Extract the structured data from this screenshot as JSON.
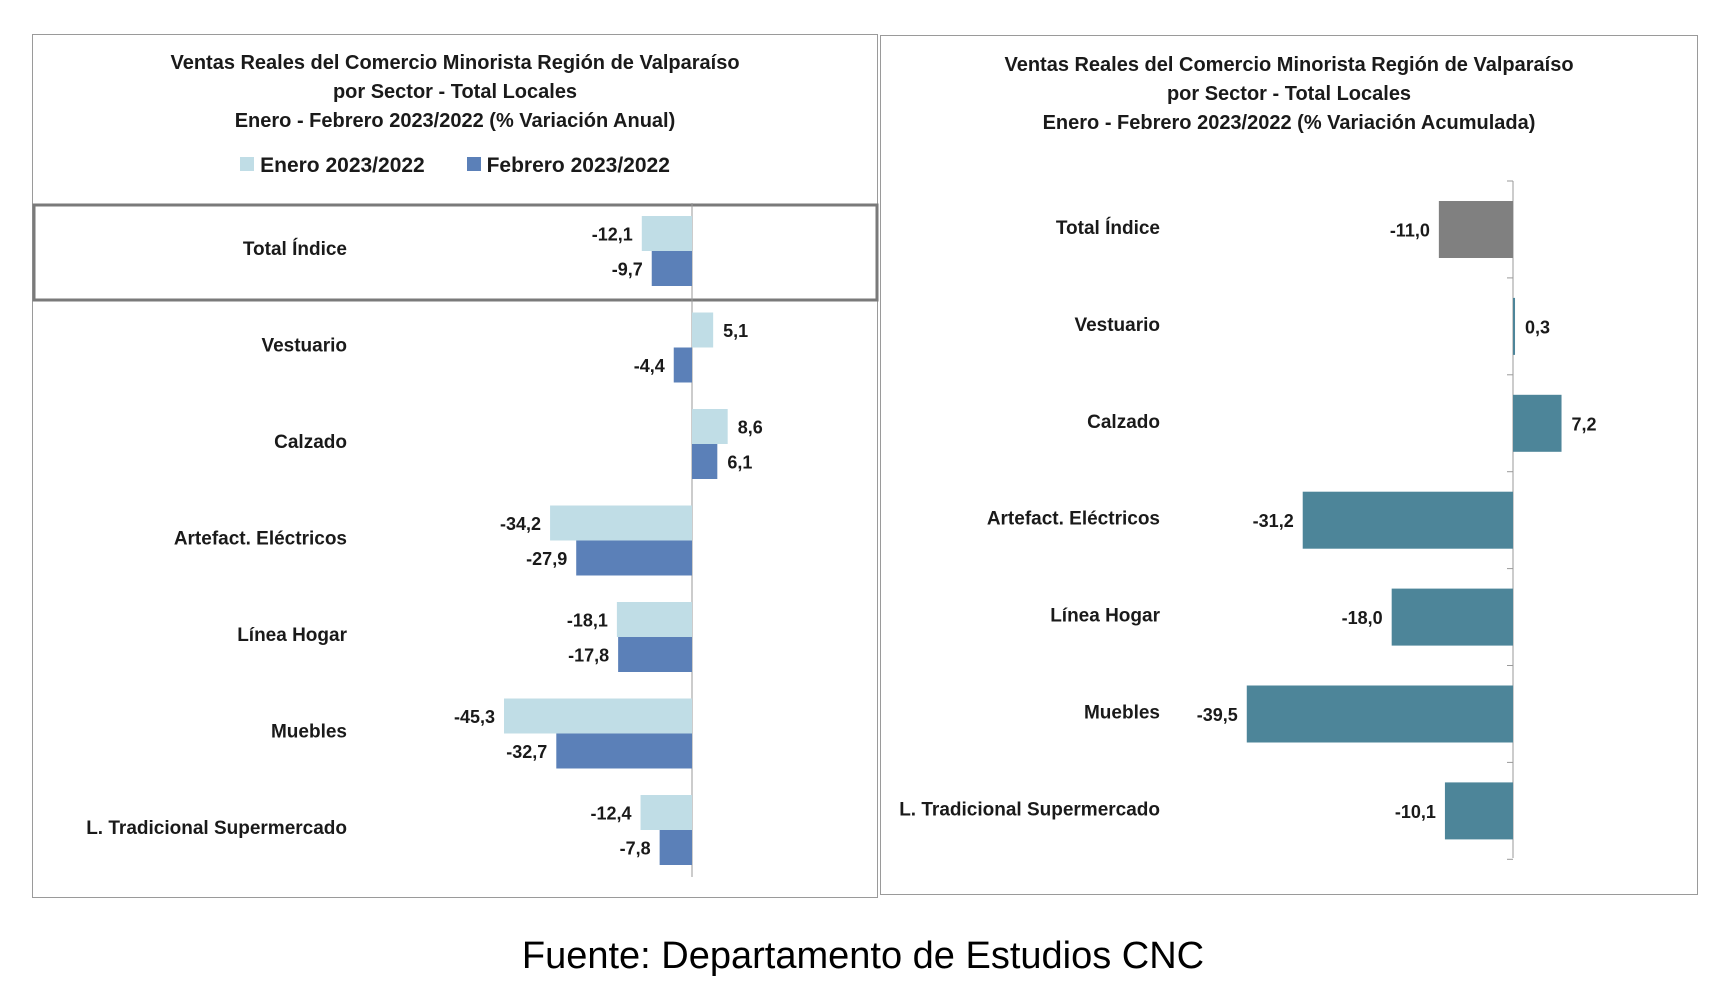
{
  "chart_data": [
    {
      "type": "bar",
      "orientation": "horizontal",
      "title": [
        "Ventas Reales del Comercio Minorista Región de Valparaíso",
        "por Sector - Total Locales",
        "Enero - Febrero 2023/2022 (% Variación Anual)"
      ],
      "categories": [
        "Total Índice",
        "Vestuario",
        "Calzado",
        "Artefact. Eléctricos",
        "Línea Hogar",
        "Muebles",
        "L. Tradicional Supermercado"
      ],
      "series": [
        {
          "name": "Enero 2023/2022",
          "color": "#c0dde6",
          "values": [
            -12.1,
            5.1,
            8.6,
            -34.2,
            -18.1,
            -45.3,
            -12.4
          ],
          "labels": [
            "-12,1",
            "5,1",
            "8,6",
            "-34,2",
            "-18,1",
            "-45,3",
            "-12,4"
          ]
        },
        {
          "name": "Febrero 2023/2022",
          "color": "#5b80b8",
          "values": [
            -9.7,
            -4.4,
            6.1,
            -27.9,
            -17.8,
            -32.7,
            -7.8
          ],
          "labels": [
            "-9,7",
            "-4,4",
            "6,1",
            "-27,9",
            "-17,8",
            "-32,7",
            "-7,8"
          ]
        }
      ],
      "legend": "top",
      "grid": false,
      "highlight_category": "Total Índice"
    },
    {
      "type": "bar",
      "orientation": "horizontal",
      "title": [
        "Ventas Reales del Comercio Minorista Región de Valparaíso",
        "por Sector  - Total Locales",
        "Enero - Febrero 2023/2022 (% Variación Acumulada)"
      ],
      "categories": [
        "Total Índice",
        "Vestuario",
        "Calzado",
        "Artefact. Eléctricos",
        "Línea Hogar",
        "Muebles",
        "L. Tradicional Supermercado"
      ],
      "values": [
        -11.0,
        0.3,
        7.2,
        -31.2,
        -18.0,
        -39.5,
        -10.1
      ],
      "labels": [
        "-11,0",
        "0,3",
        "7,2",
        "-31,2",
        "-18,0",
        "-39,5",
        "-10,1"
      ],
      "colors": [
        "#808080",
        "#4d8599",
        "#4d8599",
        "#4d8599",
        "#4d8599",
        "#4d8599",
        "#4d8599"
      ],
      "legend": "none",
      "grid": false
    }
  ],
  "footer": "Fuente: Departamento de Estudios CNC"
}
